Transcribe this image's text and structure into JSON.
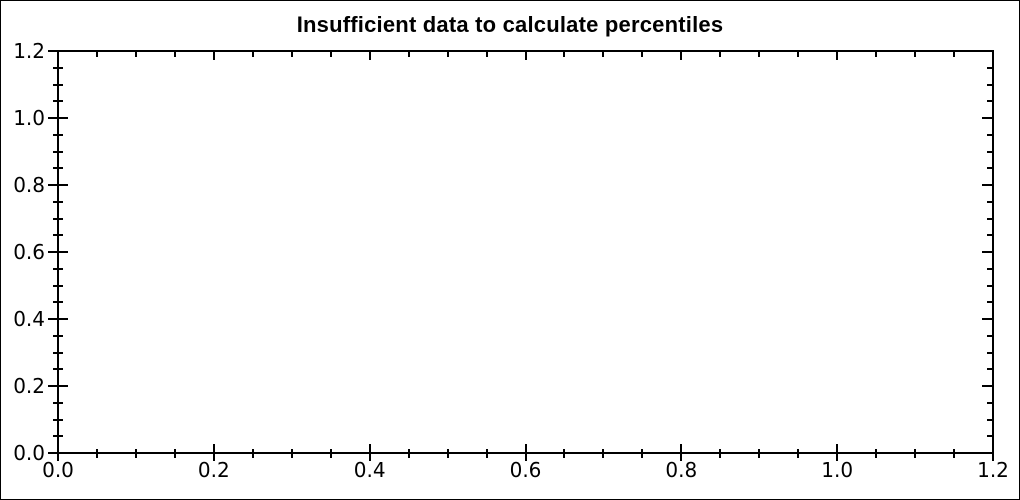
{
  "chart_data": {
    "type": "scatter",
    "title": "Insufficient data to calculate percentiles",
    "series": [],
    "x_axis": {
      "tick_labels": [
        "0.0",
        "0.2",
        "0.4",
        "0.6",
        "0.8",
        "1.0",
        "1.2"
      ],
      "range": [
        0.0,
        1.2
      ],
      "minor_divisions_per_major": 4
    },
    "y_axis": {
      "tick_labels_top_to_bottom": [
        "1.2",
        "1.0",
        "0.8",
        "0.6",
        "0.4",
        "0.2",
        "0.0"
      ],
      "range": [
        0.0,
        1.2
      ],
      "minor_divisions_per_major": 4
    },
    "grid": false,
    "legend": false,
    "colors": {
      "axis": "#000000",
      "text": "#000000",
      "background": "#ffffff",
      "frame_border": "#000000"
    }
  }
}
